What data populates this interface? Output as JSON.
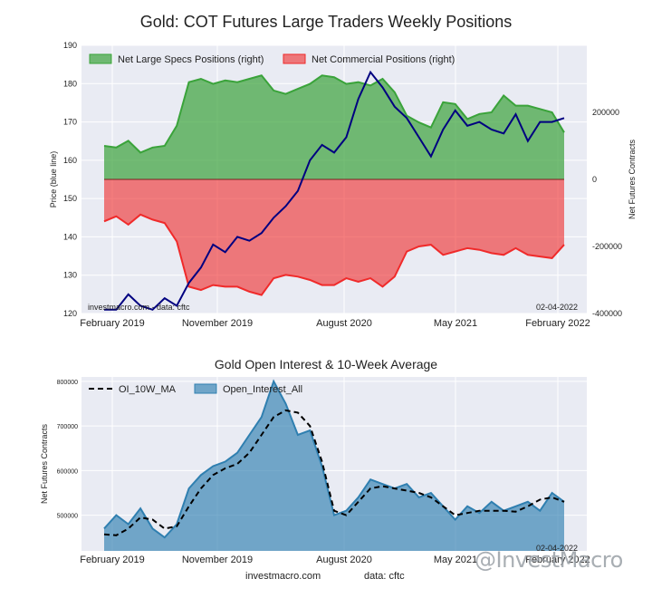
{
  "titles": {
    "main": "Gold: COT Futures Large Traders Weekly Positions",
    "sub": "Gold Open Interest & 10-Week Average"
  },
  "footer": {
    "site": "investmacro.com",
    "source": "data: cftc"
  },
  "watermark": "@InvestMacro",
  "colors": {
    "specs": "#3aa33a",
    "commercial": "#f02a2a",
    "price": "#000080",
    "oi": "#2f7fb0",
    "ma": "#000000",
    "bg": "#e9ebf3"
  },
  "chart_data": [
    {
      "type": "area",
      "title": "Gold: COT Futures Large Traders Weekly Positions",
      "ylabel_left": "Price (blue line)",
      "ylabel_right": "Net Futures Contracts",
      "ylim_left": [
        120,
        190
      ],
      "ylim_right": [
        -400000,
        400000
      ],
      "yticks_left": [
        "120",
        "130",
        "140",
        "150",
        "160",
        "170",
        "180",
        "190"
      ],
      "yticks_right": [
        "-400000",
        "-200000",
        "0",
        "200000"
      ],
      "xticks": [
        "February 2019",
        "November 2019",
        "August 2020",
        "May 2021",
        "February 2022"
      ],
      "grid": true,
      "legend": "top-left",
      "legend_entries": [
        "Net Large Specs Positions (right)",
        "Net Commercial Positions (right)"
      ],
      "annotations": {
        "left": "investmacro.com - data: cftc",
        "right": "02-04-2022"
      },
      "x": [
        0,
        4,
        8,
        12,
        16,
        20,
        24,
        28,
        32,
        36,
        40,
        44,
        48,
        52,
        56,
        60,
        64,
        68,
        72,
        76,
        80,
        84,
        88,
        92,
        96,
        100,
        104,
        108,
        112,
        116,
        120,
        124,
        128,
        132,
        136,
        140,
        144,
        148,
        152
      ],
      "series": [
        {
          "name": "Net Large Specs Positions (right)",
          "values": [
            100000,
            95000,
            115000,
            80000,
            95000,
            100000,
            160000,
            290000,
            300000,
            285000,
            295000,
            290000,
            300000,
            310000,
            265000,
            255000,
            270000,
            285000,
            310000,
            305000,
            285000,
            290000,
            280000,
            300000,
            260000,
            190000,
            170000,
            155000,
            230000,
            225000,
            180000,
            195000,
            200000,
            250000,
            220000,
            220000,
            210000,
            200000,
            140000
          ]
        },
        {
          "name": "Net Commercial Positions (right)",
          "values": [
            -125000,
            -110000,
            -135000,
            -105000,
            -120000,
            -130000,
            -185000,
            -320000,
            -330000,
            -315000,
            -320000,
            -320000,
            -335000,
            -345000,
            -295000,
            -285000,
            -290000,
            -300000,
            -315000,
            -315000,
            -295000,
            -305000,
            -295000,
            -320000,
            -290000,
            -215000,
            -200000,
            -195000,
            -225000,
            -215000,
            -205000,
            -210000,
            -220000,
            -225000,
            -205000,
            -225000,
            -230000,
            -235000,
            -195000
          ]
        },
        {
          "name": "Price",
          "values": [
            121,
            121,
            125,
            122,
            121,
            124,
            122,
            128,
            132,
            138,
            136,
            140,
            139,
            141,
            145,
            148,
            152,
            160,
            164,
            162,
            166,
            176,
            183,
            179,
            174,
            171,
            166,
            161,
            168,
            173,
            169,
            170,
            168,
            167,
            172,
            165,
            170,
            170,
            171
          ]
        }
      ]
    },
    {
      "type": "area",
      "title": "Gold Open Interest & 10-Week Average",
      "ylabel": "Net Futures Contracts",
      "ylim": [
        420000,
        810000
      ],
      "yticks": [
        "500000",
        "600000",
        "700000",
        "800000"
      ],
      "xticks": [
        "February 2019",
        "November 2019",
        "August 2020",
        "May 2021",
        "February 2022"
      ],
      "grid": true,
      "legend": "top-left",
      "legend_entries": [
        "OI_10W_MA",
        "Open_Interest_All"
      ],
      "annotation": "02-04-2022",
      "x": [
        0,
        4,
        8,
        12,
        16,
        20,
        24,
        28,
        32,
        36,
        40,
        44,
        48,
        52,
        56,
        60,
        64,
        68,
        72,
        76,
        80,
        84,
        88,
        92,
        96,
        100,
        104,
        108,
        112,
        116,
        120,
        124,
        128,
        132,
        136,
        140,
        144,
        148,
        152
      ],
      "series": [
        {
          "name": "Open_Interest_All",
          "values": [
            470000,
            500000,
            480000,
            515000,
            470000,
            450000,
            480000,
            560000,
            590000,
            610000,
            620000,
            640000,
            680000,
            720000,
            800000,
            750000,
            680000,
            690000,
            610000,
            500000,
            510000,
            540000,
            580000,
            570000,
            560000,
            570000,
            540000,
            550000,
            520000,
            490000,
            520000,
            505000,
            530000,
            510000,
            520000,
            530000,
            510000,
            550000,
            530000
          ]
        },
        {
          "name": "OI_10W_MA",
          "values": [
            457000,
            455000,
            470000,
            495000,
            490000,
            470000,
            475000,
            520000,
            560000,
            590000,
            605000,
            615000,
            640000,
            680000,
            720000,
            735000,
            730000,
            700000,
            620000,
            510000,
            500000,
            530000,
            560000,
            565000,
            560000,
            555000,
            550000,
            540000,
            520000,
            500000,
            505000,
            510000,
            510000,
            510000,
            508000,
            520000,
            535000,
            540000,
            530000
          ]
        }
      ]
    }
  ]
}
